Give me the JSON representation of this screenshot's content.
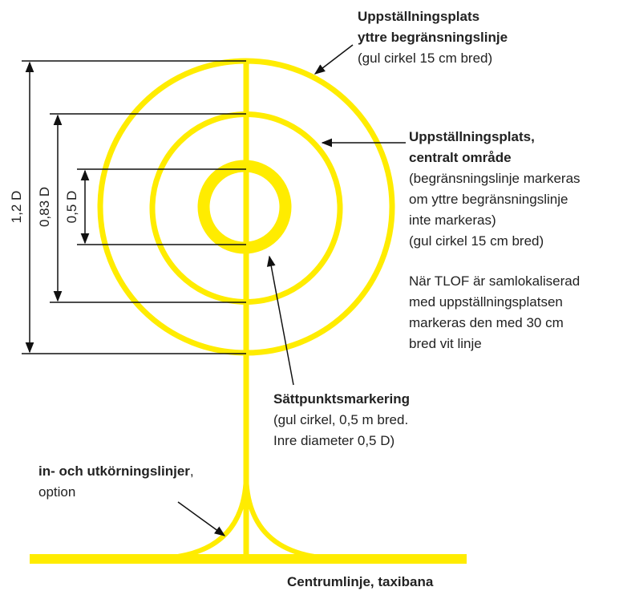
{
  "dimensions": [
    "1,2 D",
    "0,83 D",
    "0,5 D"
  ],
  "labels": {
    "outer": {
      "title": [
        "Uppställningsplats",
        "yttre begränsningslinje"
      ],
      "text": [
        "(gul cirkel 15 cm bred)"
      ]
    },
    "central": {
      "title": [
        "Uppställningsplats,",
        "centralt område"
      ],
      "text": [
        "(begränsningslinje markeras",
        "om yttre begränsningslinje",
        "inte markeras)",
        "(gul cirkel 15 cm bred)"
      ],
      "note": [
        "När TLOF är samlokaliserad",
        "med uppställningsplatsen",
        "markeras den med 30 cm",
        "bred vit linje"
      ]
    },
    "touchdown": {
      "title": [
        "Sättpunktsmarkering"
      ],
      "text": [
        "(gul cirkel, 0,5 m bred.",
        "Inre diameter 0,5 D)"
      ]
    },
    "leadlines": {
      "title": "in- och utkörningslinjer",
      "suffix": ",",
      "text": [
        "option"
      ]
    },
    "centerline": {
      "title": "Centrumlinje, taxibana"
    }
  }
}
